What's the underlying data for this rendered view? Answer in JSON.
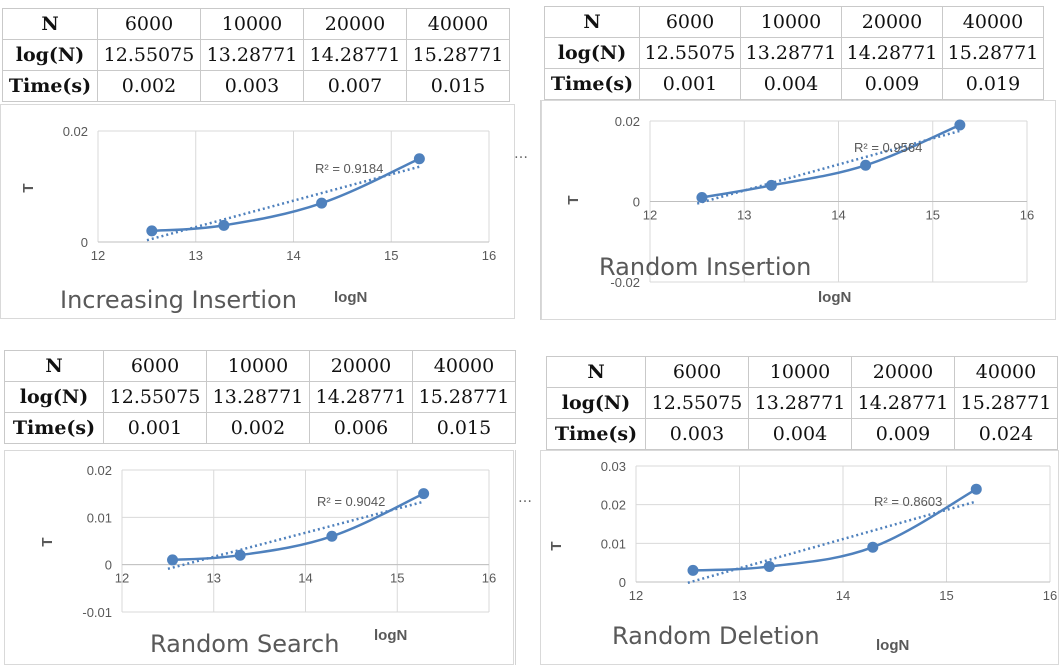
{
  "ellipsis": "…",
  "panels": [
    {
      "table": {
        "n_label": "N",
        "log_label": "log(N)",
        "time_label": "Time(s)",
        "n_values": [
          "6000",
          "10000",
          "20000",
          "40000"
        ],
        "log_values": [
          "12.55075",
          "13.28771",
          "14.28771",
          "15.28771"
        ],
        "time_values": [
          "0.002",
          "0.003",
          "0.007",
          "0.015"
        ]
      },
      "chart": {
        "title": "Increasing Insertion",
        "xlabel": "logN",
        "ylabel": "T",
        "r2_label": "R² = 0.9184",
        "x_ticks": [
          "12",
          "13",
          "14",
          "15",
          "16"
        ],
        "y_ticks": [
          "0",
          "0.02"
        ]
      }
    },
    {
      "table": {
        "n_label": "N",
        "log_label": "log(N)",
        "time_label": "Time(s)",
        "n_values": [
          "6000",
          "10000",
          "20000",
          "40000"
        ],
        "log_values": [
          "12.55075",
          "13.28771",
          "14.28771",
          "15.28771"
        ],
        "time_values": [
          "0.001",
          "0.004",
          "0.009",
          "0.019"
        ]
      },
      "chart": {
        "title": "Random Insertion",
        "xlabel": "logN",
        "ylabel": "T",
        "r2_label": "R² = 0.9564",
        "x_ticks": [
          "12",
          "13",
          "14",
          "15",
          "16"
        ],
        "y_ticks": [
          "-0.02",
          "0",
          "0.02"
        ]
      }
    },
    {
      "table": {
        "n_label": "N",
        "log_label": "log(N)",
        "time_label": "Time(s)",
        "n_values": [
          "6000",
          "10000",
          "20000",
          "40000"
        ],
        "log_values": [
          "12.55075",
          "13.28771",
          "14.28771",
          "15.28771"
        ],
        "time_values": [
          "0.001",
          "0.002",
          "0.006",
          "0.015"
        ]
      },
      "chart": {
        "title": "Random Search",
        "xlabel": "logN",
        "ylabel": "T",
        "r2_label": "R² = 0.9042",
        "x_ticks": [
          "12",
          "13",
          "14",
          "15",
          "16"
        ],
        "y_ticks": [
          "-0.01",
          "0",
          "0.01",
          "0.02"
        ]
      }
    },
    {
      "table": {
        "n_label": "N",
        "log_label": "log(N)",
        "time_label": "Time(s)",
        "n_values": [
          "6000",
          "10000",
          "20000",
          "40000"
        ],
        "log_values": [
          "12.55075",
          "13.28771",
          "14.28771",
          "15.28771"
        ],
        "time_values": [
          "0.003",
          "0.004",
          "0.009",
          "0.024"
        ]
      },
      "chart": {
        "title": "Random Deletion",
        "xlabel": "logN",
        "ylabel": "T",
        "r2_label": "R² = 0.8603",
        "x_ticks": [
          "12",
          "13",
          "14",
          "15",
          "16"
        ],
        "y_ticks": [
          "0",
          "0.01",
          "0.02",
          "0.03"
        ]
      }
    }
  ],
  "chart_data": [
    {
      "type": "scatter",
      "title": "Increasing Insertion",
      "xlabel": "logN",
      "ylabel": "T",
      "x": [
        12.55075,
        13.28771,
        14.28771,
        15.28771
      ],
      "y": [
        0.002,
        0.003,
        0.007,
        0.015
      ],
      "xlim": [
        12,
        16
      ],
      "ylim": [
        0,
        0.02
      ],
      "trendline": "polynomial",
      "r_squared": 0.9184,
      "grid": true,
      "color": "#4f81bd"
    },
    {
      "type": "scatter",
      "title": "Random Insertion",
      "xlabel": "logN",
      "ylabel": "T",
      "x": [
        12.55075,
        13.28771,
        14.28771,
        15.28771
      ],
      "y": [
        0.001,
        0.004,
        0.009,
        0.019
      ],
      "xlim": [
        12,
        16
      ],
      "ylim": [
        -0.02,
        0.02
      ],
      "trendline": "polynomial",
      "r_squared": 0.9564,
      "grid": true,
      "color": "#4f81bd"
    },
    {
      "type": "scatter",
      "title": "Random Search",
      "xlabel": "logN",
      "ylabel": "T",
      "x": [
        12.55075,
        13.28771,
        14.28771,
        15.28771
      ],
      "y": [
        0.001,
        0.002,
        0.006,
        0.015
      ],
      "xlim": [
        12,
        16
      ],
      "ylim": [
        -0.01,
        0.02
      ],
      "trendline": "polynomial",
      "r_squared": 0.9042,
      "grid": true,
      "color": "#4f81bd"
    },
    {
      "type": "scatter",
      "title": "Random Deletion",
      "xlabel": "logN",
      "ylabel": "T",
      "x": [
        12.55075,
        13.28771,
        14.28771,
        15.28771
      ],
      "y": [
        0.003,
        0.004,
        0.009,
        0.024
      ],
      "xlim": [
        12,
        16
      ],
      "ylim": [
        0,
        0.03
      ],
      "trendline": "polynomial",
      "r_squared": 0.8603,
      "grid": true,
      "color": "#4f81bd"
    }
  ]
}
